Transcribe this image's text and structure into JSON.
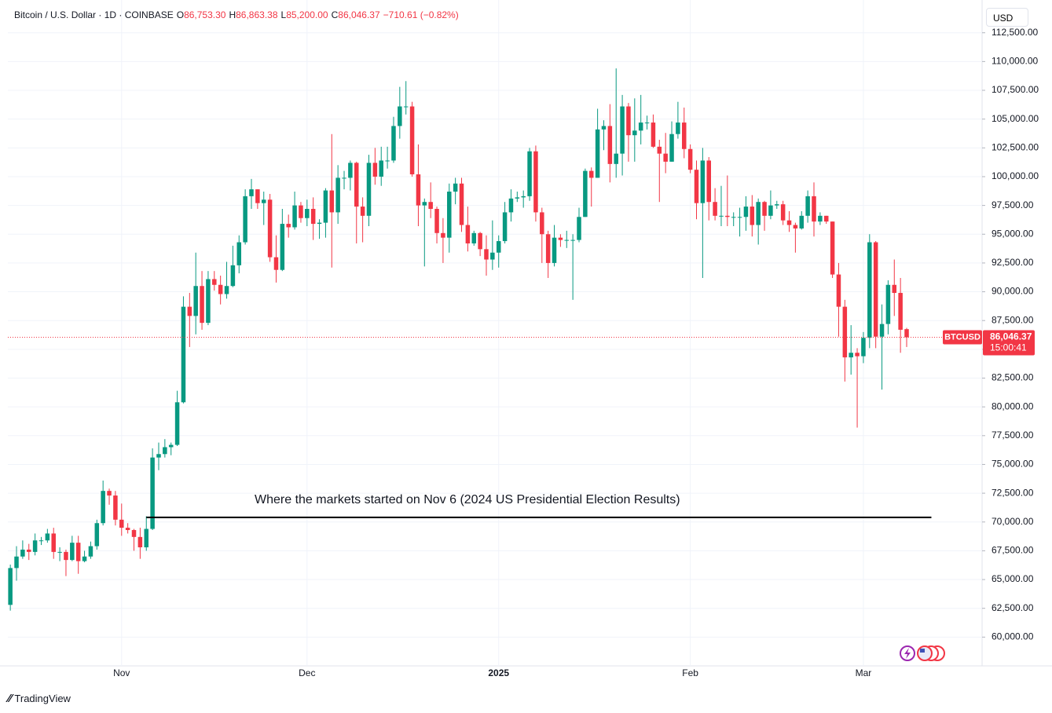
{
  "chart_data": {
    "type": "candlestick",
    "title": "Bitcoin / U.S. Dollar · 1D · COINBASE",
    "ohlc_legend": [
      {
        "label": "O",
        "text": "86,753.30"
      },
      {
        "label": "H",
        "text": "86,863.38"
      },
      {
        "label": "L",
        "text": "85,200.00"
      },
      {
        "label": "C",
        "text": "86,046.37"
      }
    ],
    "change_text": "−710.61 (−0.82%)",
    "currency": "USD",
    "symbol_tag": "BTCUSD",
    "last_price": {
      "value": 86046.37,
      "label": "86,046.37"
    },
    "countdown": "15:00:41",
    "up_color": "#089981",
    "down_color": "#f23645",
    "grid": true,
    "xlim": [
      -0.4,
      157.2
    ],
    "xticks": [
      {
        "value": 18,
        "label": "Nov"
      },
      {
        "value": 48,
        "label": "Dec"
      },
      {
        "value": 79,
        "label": "2025"
      },
      {
        "value": 110,
        "label": "Feb"
      },
      {
        "value": 138,
        "label": "Mar"
      }
    ],
    "ylim": [
      57500,
      114800
    ],
    "yticks": [
      {
        "value": 60000,
        "label": "60,000.00"
      },
      {
        "value": 62500,
        "label": "62,500.00"
      },
      {
        "value": 65000,
        "label": "65,000.00"
      },
      {
        "value": 67500,
        "label": "67,500.00"
      },
      {
        "value": 70000,
        "label": "70,000.00"
      },
      {
        "value": 72500,
        "label": "72,500.00"
      },
      {
        "value": 75000,
        "label": "75,000.00"
      },
      {
        "value": 77500,
        "label": "77,500.00"
      },
      {
        "value": 80000,
        "label": "80,000.00"
      },
      {
        "value": 82500,
        "label": "82,500.00"
      },
      {
        "value": 85000,
        "label": "85,000.00"
      },
      {
        "value": 87500,
        "label": "87,500.00"
      },
      {
        "value": 90000,
        "label": "90,000.00"
      },
      {
        "value": 92500,
        "label": "92,500.00"
      },
      {
        "value": 95000,
        "label": "95,000.00"
      },
      {
        "value": 97500,
        "label": "97,500.00"
      },
      {
        "value": 100000,
        "label": "100,000.00"
      },
      {
        "value": 102500,
        "label": "102,500.00"
      },
      {
        "value": 105000,
        "label": "105,000.00"
      },
      {
        "value": 107500,
        "label": "107,500.00"
      },
      {
        "value": 110000,
        "label": "110,000.00"
      },
      {
        "value": 112500,
        "label": "112,500.00"
      }
    ],
    "annotation": {
      "text": "Where the markets started on Nov 6 (2024 US Presidential Election Results)",
      "y": 70400,
      "x_from": 22,
      "x_to": 149
    },
    "open": [
      62800,
      66000,
      67000,
      67600,
      67400,
      68400,
      68400,
      69000,
      67400,
      67400,
      66700,
      68200,
      66600,
      67000,
      67900,
      69900,
      72700,
      72300,
      70200,
      69500,
      69300,
      68700,
      67800,
      69400,
      75600,
      75900,
      76500,
      76700,
      80400,
      88700,
      87900,
      90500,
      87300,
      91100,
      90600,
      89800,
      90500,
      92300,
      94300,
      98300,
      98900,
      97700,
      98000,
      93000,
      91900,
      95900,
      95600,
      97500,
      96400,
      97200,
      95900,
      96000,
      98800,
      96900,
      99900,
      99900,
      101200,
      97400,
      96600,
      101200,
      100000,
      101400,
      101400,
      104400,
      106100,
      106100,
      100200,
      97500,
      97800,
      97200,
      95100,
      94700,
      98700,
      99400,
      95800,
      94200,
      95100,
      93700,
      92800,
      93400,
      94400,
      96900,
      98100,
      98200,
      98300,
      102200,
      96900,
      95000,
      92500,
      94700,
      94500,
      94500,
      94500,
      96500,
      100500,
      99900,
      104100,
      104400,
      101100,
      102000,
      106100,
      103600,
      104000,
      104700,
      104700,
      102600,
      102000,
      101300,
      103700,
      104700,
      102400,
      100600,
      97700,
      101400,
      97800,
      96600,
      96600,
      96500,
      96500,
      96500,
      97400,
      95800,
      97800,
      96600,
      97500,
      97600,
      96200,
      95800,
      95500,
      96600,
      98300,
      96100,
      96600,
      96100,
      91500,
      88700,
      84300,
      84700,
      84400,
      86000,
      94300,
      86100,
      87200,
      90600,
      89900,
      86753.3
    ],
    "high": [
      66300,
      67900,
      68400,
      68100,
      69000,
      68700,
      69400,
      69500,
      67800,
      67600,
      68800,
      68800,
      67500,
      68300,
      70200,
      73600,
      72900,
      72700,
      71600,
      69900,
      69400,
      69500,
      70500,
      76400,
      76900,
      77200,
      76900,
      81400,
      89600,
      89900,
      93400,
      91800,
      91800,
      91800,
      91400,
      92600,
      94000,
      94900,
      98900,
      99800,
      98900,
      98700,
      98500,
      94900,
      97200,
      96700,
      98700,
      97800,
      98000,
      98200,
      96300,
      99000,
      103700,
      101000,
      100500,
      101400,
      101300,
      98200,
      101900,
      102500,
      102600,
      102600,
      105200,
      107800,
      108300,
      106500,
      102800,
      98100,
      99500,
      97400,
      96400,
      99400,
      99900,
      99900,
      97400,
      95300,
      95200,
      94900,
      96200,
      94900,
      97800,
      98900,
      98700,
      98800,
      102500,
      102700,
      97300,
      95300,
      95800,
      95000,
      95300,
      95000,
      97300,
      100700,
      100800,
      105900,
      104900,
      106300,
      109400,
      107100,
      106400,
      106800,
      107100,
      105300,
      105400,
      103200,
      103800,
      104800,
      106500,
      106000,
      102800,
      101400,
      102500,
      101700,
      99000,
      99200,
      100100,
      96900,
      97300,
      98300,
      98400,
      98100,
      97900,
      98800,
      97900,
      97900,
      97000,
      96000,
      97000,
      98800,
      99500,
      96900,
      96600,
      96100,
      92500,
      89300,
      87100,
      85100,
      86500,
      95000,
      94400,
      88900,
      91000,
      92800,
      91200,
      86863.38
    ],
    "low": [
      62300,
      64900,
      66800,
      66700,
      67100,
      68000,
      68200,
      66800,
      66600,
      65300,
      66600,
      65500,
      66500,
      66800,
      67600,
      69700,
      71500,
      69700,
      68800,
      69000,
      67500,
      66800,
      67500,
      69300,
      74500,
      75600,
      75800,
      76600,
      80300,
      85200,
      86300,
      86700,
      87100,
      90100,
      88900,
      89400,
      90400,
      91600,
      94100,
      97200,
      97200,
      95800,
      92600,
      90800,
      91800,
      94700,
      95400,
      96000,
      95700,
      94500,
      94600,
      94700,
      92100,
      95900,
      98900,
      98800,
      94200,
      94300,
      95700,
      99300,
      99200,
      100700,
      101200,
      103300,
      105400,
      100000,
      95700,
      92200,
      96400,
      94200,
      92500,
      93400,
      97600,
      95200,
      93500,
      94000,
      93100,
      91400,
      91900,
      92100,
      94200,
      96100,
      97800,
      97300,
      97900,
      96100,
      92500,
      91200,
      92200,
      93900,
      93800,
      89300,
      94300,
      96500,
      97400,
      99900,
      102300,
      99500,
      99900,
      100100,
      101300,
      101300,
      102800,
      104100,
      102500,
      97800,
      100300,
      101300,
      103300,
      101600,
      100300,
      96300,
      91200,
      96200,
      96200,
      95700,
      95700,
      95700,
      94800,
      95300,
      94800,
      94100,
      95300,
      96300,
      97200,
      95800,
      95200,
      93400,
      95400,
      96000,
      94800,
      95800,
      95900,
      91200,
      86100,
      82200,
      82800,
      78200,
      83800,
      85100,
      85100,
      81500,
      86300,
      87900,
      84700,
      85200
    ],
    "close": [
      66000,
      67000,
      67600,
      67400,
      68400,
      68400,
      69000,
      67400,
      67400,
      66700,
      68200,
      66600,
      67000,
      67900,
      69900,
      72700,
      72300,
      70200,
      69500,
      69300,
      68700,
      67800,
      69400,
      75600,
      75900,
      76500,
      76700,
      80400,
      88700,
      87900,
      90500,
      87300,
      91100,
      90600,
      89800,
      90500,
      92300,
      94300,
      98300,
      98900,
      97700,
      98000,
      93000,
      91900,
      95900,
      95600,
      97500,
      96400,
      97200,
      95900,
      96000,
      98800,
      96900,
      99900,
      99900,
      101200,
      97400,
      96600,
      101200,
      100000,
      101400,
      101400,
      104400,
      106100,
      106100,
      100200,
      97500,
      97800,
      97200,
      95100,
      94700,
      98700,
      99400,
      95800,
      94200,
      95100,
      93700,
      92800,
      93400,
      94400,
      96900,
      98100,
      98200,
      98300,
      102200,
      96900,
      95000,
      92500,
      94700,
      94500,
      94500,
      94500,
      96500,
      100500,
      99900,
      104100,
      104400,
      101100,
      102000,
      106100,
      103600,
      104000,
      104700,
      104700,
      102600,
      102000,
      101300,
      103700,
      104700,
      102400,
      100600,
      97700,
      101400,
      97800,
      96600,
      96600,
      96500,
      96500,
      96500,
      97400,
      95800,
      97800,
      96600,
      97500,
      97600,
      96200,
      95800,
      95500,
      96600,
      98300,
      96100,
      96600,
      96100,
      91500,
      88700,
      84300,
      84700,
      84400,
      86000,
      94300,
      86100,
      87200,
      90600,
      89900,
      86700,
      86046.37
    ]
  },
  "branding": "TradingView"
}
